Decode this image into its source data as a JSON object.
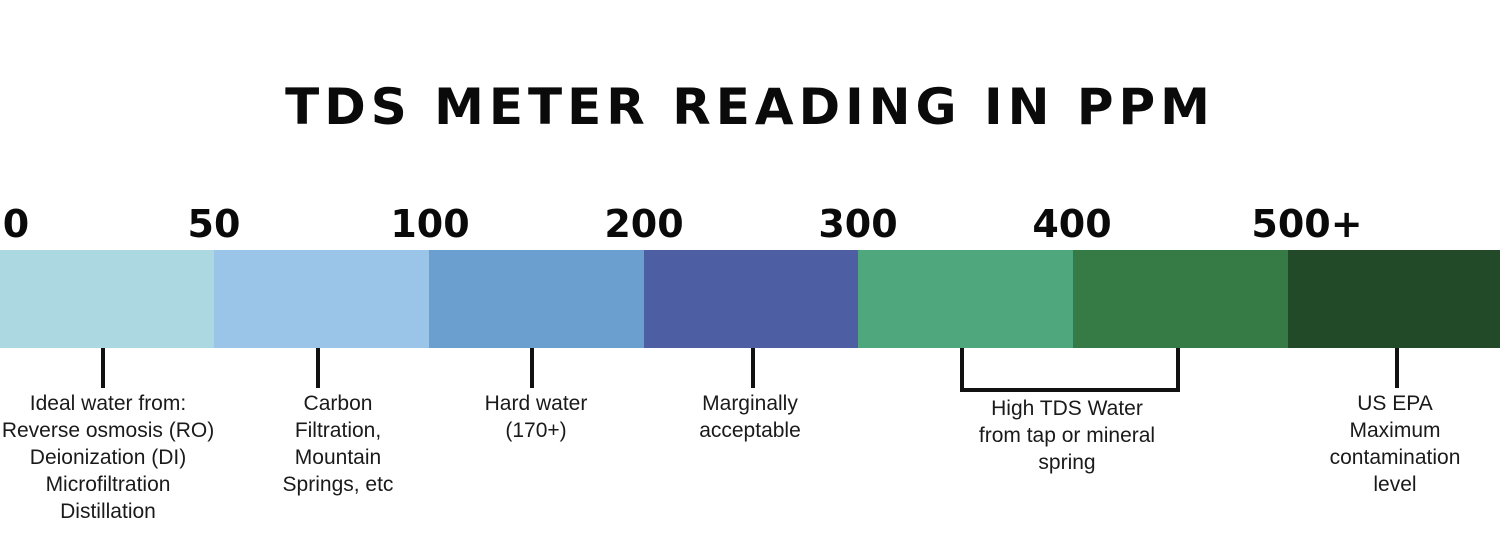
{
  "title": "TDS METER READING IN PPM",
  "scale": {
    "ticks": [
      "0",
      "50",
      "100",
      "200",
      "300",
      "400",
      "500+"
    ],
    "colors": [
      "#acd8e1",
      "#9ac5e8",
      "#6b9fd0",
      "#4d5ea3",
      "#4fa77d",
      "#367b45",
      "#224a28"
    ]
  },
  "annotations": [
    {
      "name": "ideal-water",
      "lines": [
        "Ideal water from:",
        "Reverse osmosis (RO)",
        "Deionization (DI)",
        "Microfiltration",
        "Distillation"
      ]
    },
    {
      "name": "carbon-filtration",
      "lines": [
        "Carbon",
        "Filtration,",
        "Mountain",
        "Springs, etc"
      ]
    },
    {
      "name": "hard-water",
      "lines": [
        "Hard water",
        "(170+)"
      ]
    },
    {
      "name": "marginally-acceptable",
      "lines": [
        "Marginally",
        "acceptable"
      ]
    },
    {
      "name": "high-tds-water",
      "lines": [
        "High TDS Water",
        "from tap or mineral",
        "spring"
      ]
    },
    {
      "name": "us-epa",
      "lines": [
        "US EPA",
        "Maximum",
        "contamination",
        "level"
      ]
    }
  ]
}
